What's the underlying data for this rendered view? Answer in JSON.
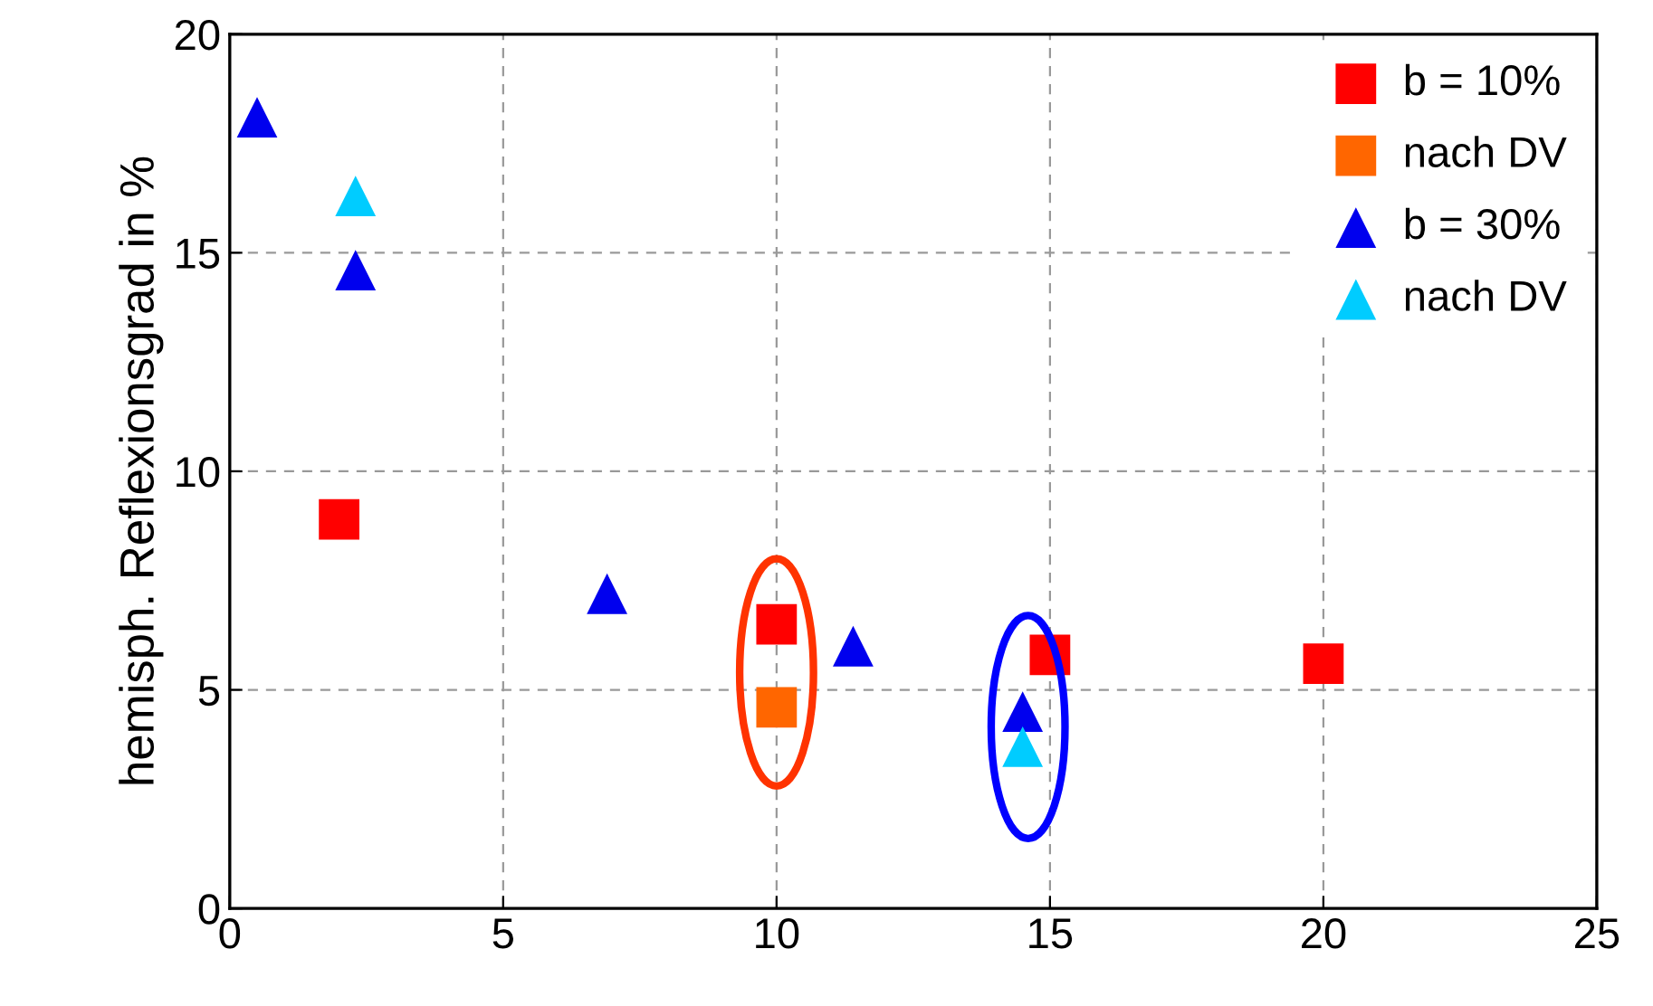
{
  "chart_data": {
    "type": "scatter",
    "ylabel": "hemisph. Reflexionsgrad in %",
    "series": [
      {
        "name": "b = 10%",
        "color": "#ff0000",
        "marker": "square",
        "x": [
          2.0,
          10.0,
          15.0,
          20.0
        ],
        "values": [
          8.9,
          6.5,
          5.8,
          5.6
        ]
      },
      {
        "name": "nach DV",
        "color": "#ff6600",
        "marker": "square",
        "x": [
          10.0
        ],
        "values": [
          4.6
        ]
      },
      {
        "name": "b = 30%",
        "color": "#0000ee",
        "marker": "triangle",
        "x": [
          0.5,
          2.3,
          6.9,
          11.4,
          14.5
        ],
        "values": [
          18.1,
          14.6,
          7.2,
          6.0,
          4.5
        ]
      },
      {
        "name": "nach DV",
        "color": "#00ccff",
        "marker": "triangle",
        "x": [
          2.3,
          14.5
        ],
        "values": [
          16.3,
          3.7
        ]
      }
    ],
    "xlim": [
      0,
      25
    ],
    "xticks": [
      0,
      5,
      10,
      15,
      20,
      25
    ],
    "ylim": [
      0,
      20
    ],
    "yticks": [
      0,
      5,
      10,
      15,
      20
    ],
    "grid": true,
    "legend": "top right"
  }
}
